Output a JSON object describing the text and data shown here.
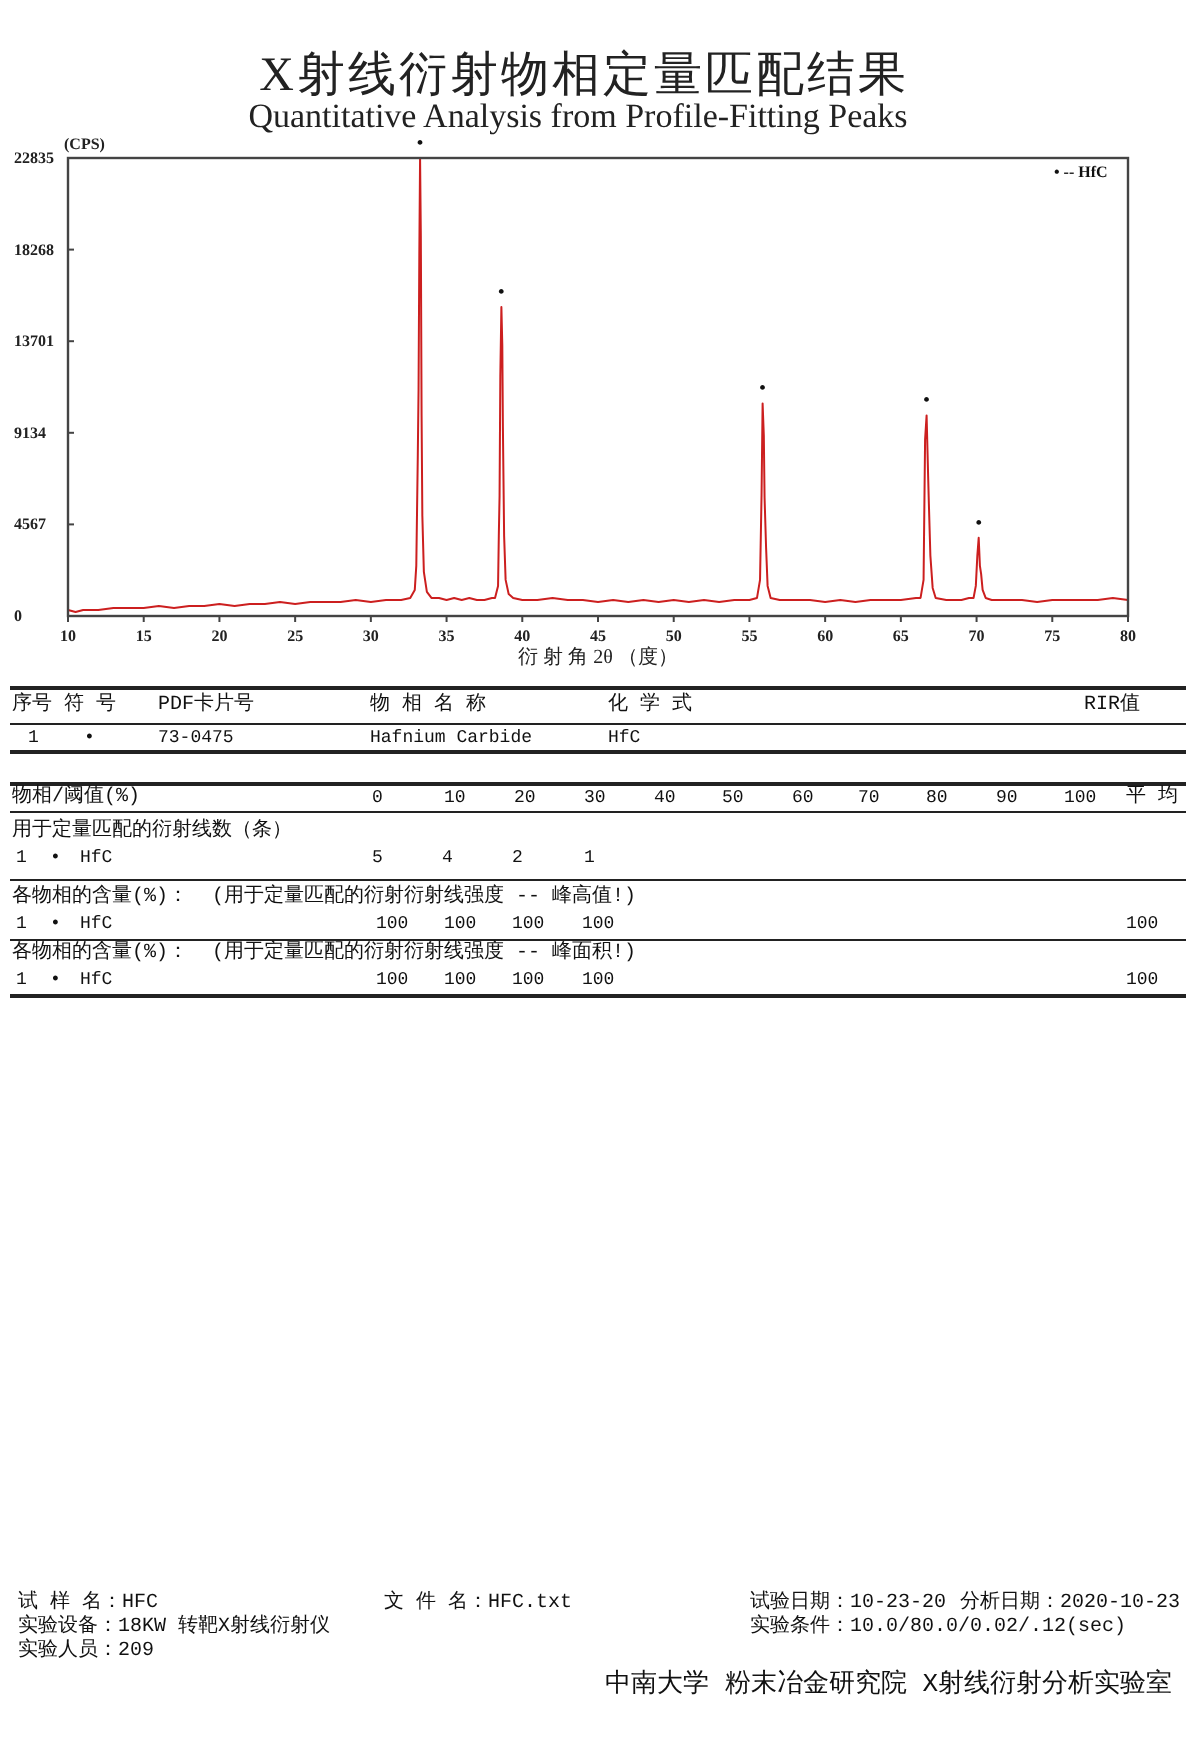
{
  "chart_data": {
    "type": "line",
    "title": "X射线衍射物相定量匹配结果",
    "subtitle": "Quantitative Analysis from Profile-Fitting Peaks",
    "xlabel": "衍 射 角 2θ （度）",
    "ylabel": "(CPS)",
    "x": [
      10,
      10.5,
      11,
      12,
      13,
      14,
      15,
      16,
      17,
      18,
      19,
      20,
      21,
      22,
      23,
      24,
      25,
      26,
      27,
      28,
      29,
      30,
      31,
      32,
      32.6,
      32.9,
      33.0,
      33.1,
      33.15,
      33.2,
      33.25,
      33.3,
      33.35,
      33.4,
      33.5,
      33.7,
      34.0,
      34.5,
      35,
      35.5,
      36,
      36.5,
      37,
      37.5,
      38,
      38.2,
      38.4,
      38.45,
      38.5,
      38.55,
      38.62,
      38.68,
      38.72,
      38.8,
      38.9,
      39.1,
      39.4,
      40,
      41,
      42,
      43,
      44,
      45,
      46,
      47,
      48,
      49,
      50,
      51,
      52,
      53,
      54,
      55,
      55.5,
      55.7,
      55.8,
      55.87,
      55.95,
      56.0,
      56.1,
      56.2,
      56.4,
      57,
      58,
      59,
      60,
      61,
      62,
      63,
      64,
      65,
      66,
      66.3,
      66.5,
      66.6,
      66.7,
      66.8,
      66.85,
      66.95,
      67.1,
      67.3,
      68,
      69,
      69.5,
      69.8,
      69.95,
      70.05,
      70.14,
      70.22,
      70.3,
      70.4,
      70.6,
      71,
      72,
      73,
      74,
      75,
      76,
      77,
      78,
      79,
      80
    ],
    "series": [
      {
        "color": "#cc1f1f",
        "values": [
          300,
          200,
          300,
          300,
          400,
          400,
          400,
          500,
          400,
          500,
          500,
          600,
          500,
          600,
          600,
          700,
          600,
          700,
          700,
          700,
          800,
          700,
          800,
          800,
          900,
          1300,
          2500,
          8000,
          11300,
          18000,
          22835,
          19000,
          10000,
          5000,
          2200,
          1200,
          900,
          900,
          800,
          900,
          800,
          900,
          800,
          800,
          900,
          900,
          1500,
          4000,
          6000,
          12000,
          15400,
          13500,
          9400,
          4000,
          1800,
          1100,
          900,
          800,
          800,
          900,
          800,
          800,
          700,
          800,
          700,
          800,
          700,
          800,
          700,
          800,
          700,
          800,
          800,
          900,
          1800,
          6000,
          10600,
          9000,
          5900,
          3400,
          1500,
          900,
          800,
          800,
          800,
          700,
          800,
          700,
          800,
          800,
          800,
          900,
          900,
          1800,
          8800,
          10000,
          7000,
          5600,
          3000,
          1400,
          900,
          800,
          800,
          900,
          900,
          1500,
          3000,
          3900,
          2500,
          2100,
          1300,
          900,
          800,
          800,
          800,
          700,
          800,
          800,
          800,
          800,
          900,
          800
        ]
      }
    ],
    "xlim": [
      10,
      80
    ],
    "ylim": [
      0,
      22835
    ],
    "xticks": [
      10,
      15,
      20,
      25,
      30,
      35,
      40,
      45,
      50,
      55,
      60,
      65,
      70,
      75,
      80
    ],
    "yticks": [
      0,
      4567,
      9134,
      13701,
      18268,
      22835
    ],
    "annotations": [
      {
        "text": "•",
        "x": 33.25,
        "y": 22835
      },
      {
        "text": "•",
        "x": 38.62,
        "y": 15400
      },
      {
        "text": "•",
        "x": 55.87,
        "y": 10600
      },
      {
        "text": "•",
        "x": 66.7,
        "y": 10000
      },
      {
        "text": "•",
        "x": 70.14,
        "y": 3900
      },
      "• -- HfC",
      "序号",
      "符 号",
      "PDF卡片号",
      "物 相 名 称",
      "化 学 式",
      "RIR值",
      "1",
      "•",
      "73-0475",
      "Hafnium Carbide",
      "HfC",
      "物相/阈值(%)",
      "0",
      "10",
      "20",
      "30",
      "40",
      "50",
      "60",
      "70",
      "80",
      "90",
      "100",
      "平 均",
      "用于定量匹配的衍射线数（条）",
      "1",
      "•",
      "HfC",
      "5",
      "4",
      "2",
      "1",
      "各物相的含量(%)：",
      "(用于定量匹配的衍射衍射线强度 -- 峰高值!)",
      "1",
      "•",
      "HfC",
      "100",
      "100",
      "100",
      "100",
      "100",
      "各物相的含量(%)：",
      "(用于定量匹配的衍射衍射线强度 -- 峰面积!)",
      "1",
      "•",
      "HfC",
      "100",
      "100",
      "100",
      "100",
      "100",
      "试 样 名：HFC",
      "文 件 名：HFC.txt",
      "试验日期：10-23-20",
      "分析日期：2020-10-23",
      "实验设备：18KW 转靶X射线衍射仪",
      "实验条件：10.0/80.0/0.02/.12(sec)",
      "实验人员：209",
      "中南大学 粉末冶金研究院 X射线衍射分析实验室"
    ]
  }
}
